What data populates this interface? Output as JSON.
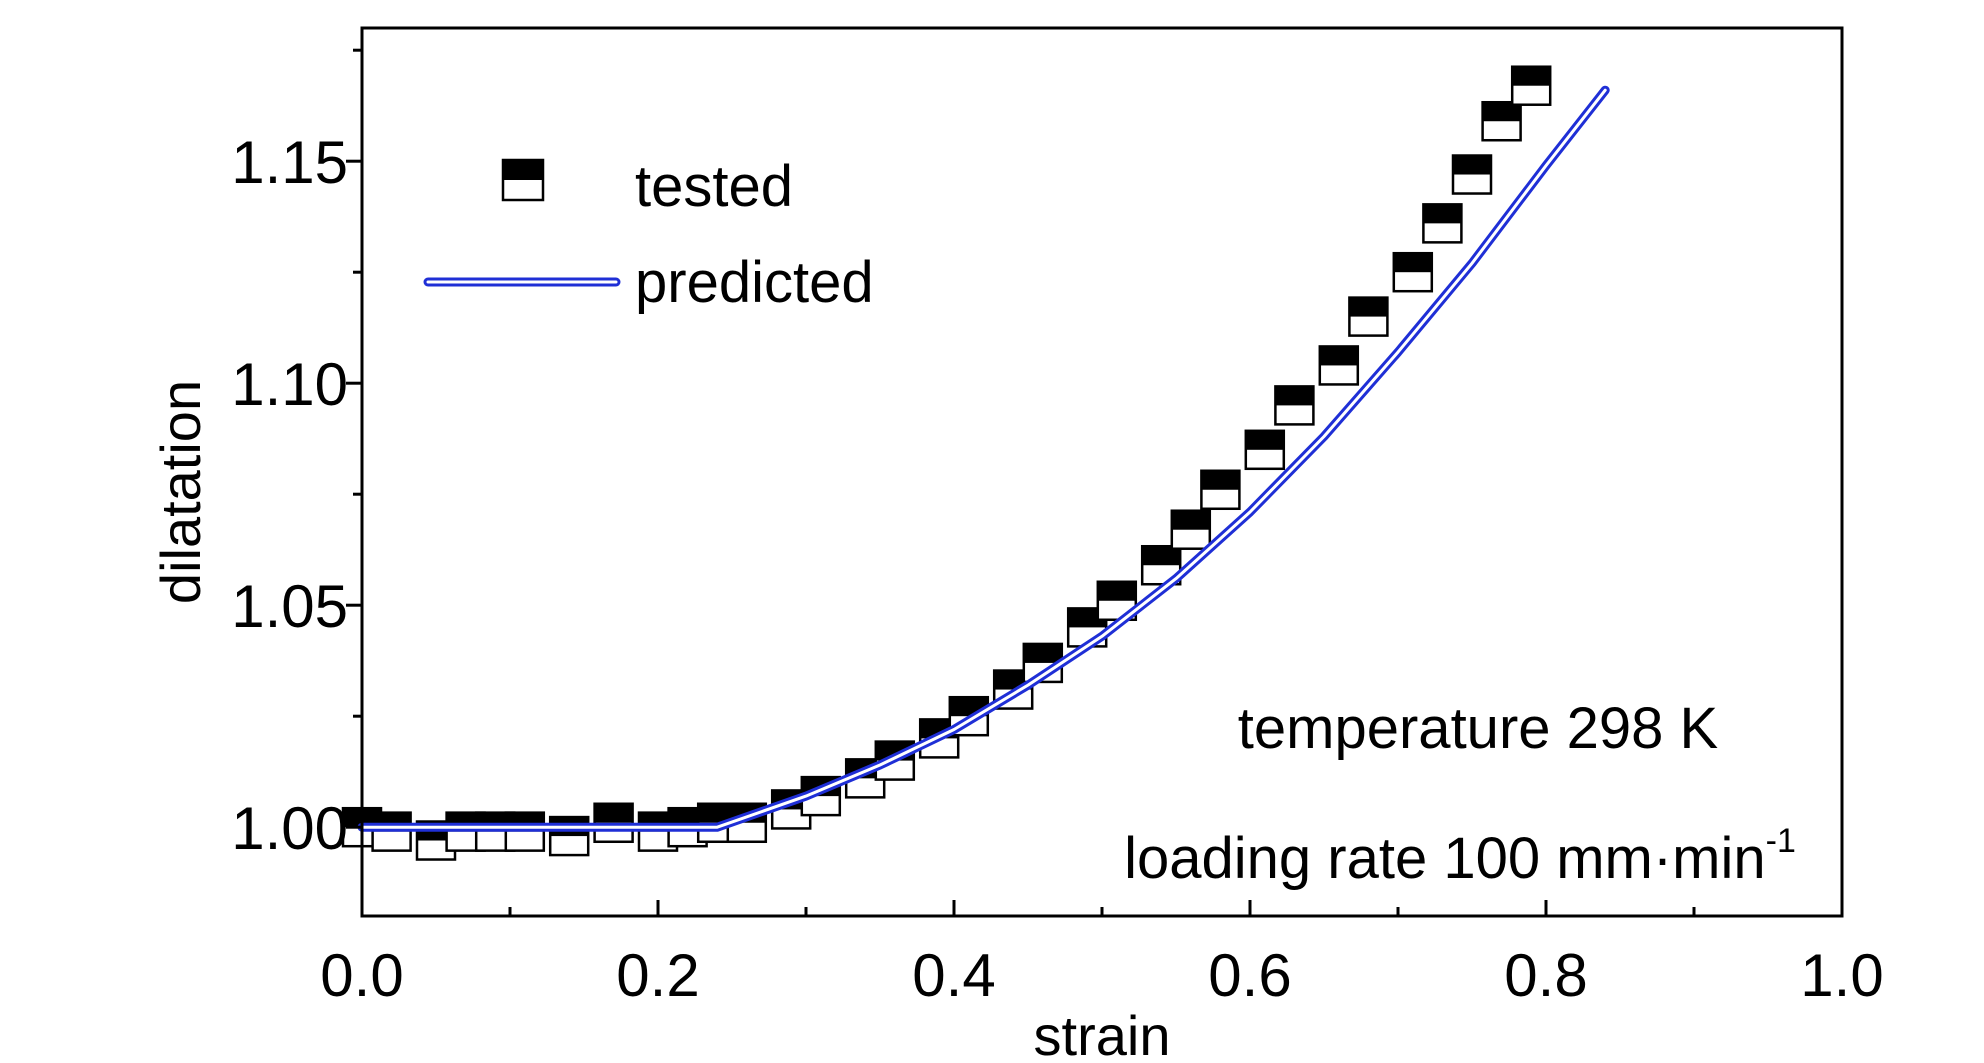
{
  "chart_data": {
    "type": "scatter",
    "xlabel": "strain",
    "ylabel": "dilatation",
    "xlim": [
      0.0,
      1.0
    ],
    "ylim": [
      0.98,
      1.18
    ],
    "x_ticks": [
      "0.0",
      "0.2",
      "0.4",
      "0.6",
      "0.8",
      "1.0"
    ],
    "x_tick_values": [
      0.0,
      0.2,
      0.4,
      0.6,
      0.8,
      1.0
    ],
    "y_ticks": [
      "1.00",
      "1.05",
      "1.10",
      "1.15"
    ],
    "y_tick_values": [
      1.0,
      1.05,
      1.1,
      1.15
    ],
    "grid": false,
    "legend_position": "top-left",
    "series": [
      {
        "name": "tested",
        "marker": "half-filled-square",
        "x": [
          0.0,
          0.02,
          0.05,
          0.07,
          0.09,
          0.11,
          0.14,
          0.17,
          0.2,
          0.22,
          0.24,
          0.26,
          0.29,
          0.31,
          0.34,
          0.36,
          0.39,
          0.41,
          0.44,
          0.46,
          0.49,
          0.51,
          0.54,
          0.56,
          0.58,
          0.61,
          0.63,
          0.66,
          0.68,
          0.71,
          0.73,
          0.75,
          0.77,
          0.79
        ],
        "y": [
          1.0,
          0.999,
          0.997,
          0.999,
          0.999,
          0.999,
          0.998,
          1.001,
          0.999,
          1.0,
          1.001,
          1.001,
          1.004,
          1.007,
          1.011,
          1.015,
          1.02,
          1.025,
          1.031,
          1.037,
          1.045,
          1.051,
          1.059,
          1.067,
          1.076,
          1.085,
          1.095,
          1.104,
          1.115,
          1.125,
          1.136,
          1.147,
          1.159,
          1.167
        ]
      },
      {
        "name": "predicted",
        "line": true,
        "x": [
          0.0,
          0.05,
          0.1,
          0.15,
          0.2,
          0.24,
          0.3,
          0.35,
          0.4,
          0.45,
          0.5,
          0.55,
          0.6,
          0.65,
          0.7,
          0.75,
          0.8,
          0.84
        ],
        "y": [
          1.0,
          1.0,
          1.0,
          1.0,
          1.0,
          1.0,
          1.007,
          1.014,
          1.022,
          1.032,
          1.043,
          1.056,
          1.071,
          1.088,
          1.107,
          1.127,
          1.149,
          1.166
        ]
      }
    ],
    "annotations": [
      {
        "text": "temperature 298 K"
      },
      {
        "text": "loading rate 100 mm·min",
        "superscript": "-1"
      }
    ]
  },
  "colors": {
    "predicted_line": "#1f2fd6",
    "marker_fill": "#000000",
    "axis": "#000000"
  }
}
